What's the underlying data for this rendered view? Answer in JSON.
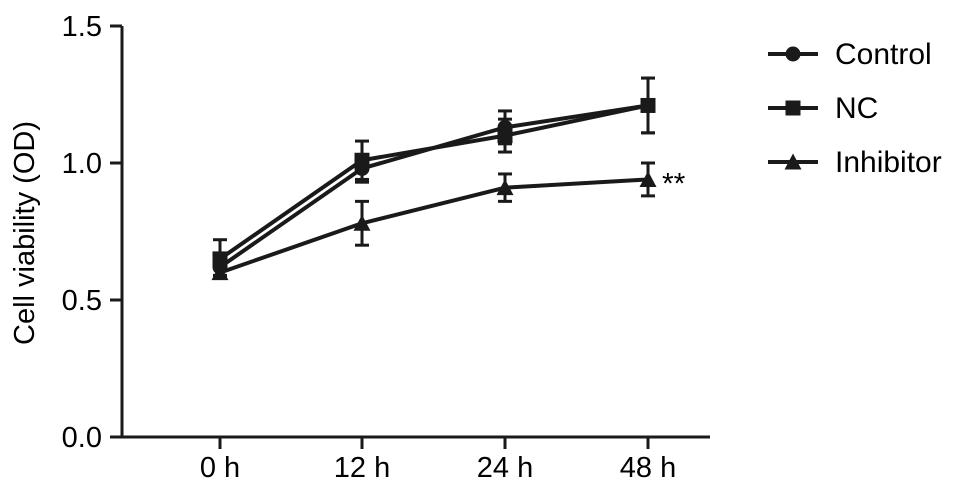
{
  "chart_data": {
    "type": "line",
    "title": "",
    "xlabel": "",
    "ylabel": "Cell viability (OD)",
    "categories": [
      "0 h",
      "12 h",
      "24 h",
      "48 h"
    ],
    "ylim": [
      0,
      1.5
    ],
    "yticks": [
      "0.0",
      "0.5",
      "1.0",
      "1.5"
    ],
    "grid": false,
    "legend_position": "right",
    "series": [
      {
        "name": "Control",
        "marker": "circle",
        "values": [
          0.62,
          0.98,
          1.13,
          1.21
        ],
        "errors": [
          0.03,
          0.05,
          0.06,
          0.1
        ]
      },
      {
        "name": "NC",
        "marker": "square",
        "values": [
          0.65,
          1.01,
          1.1,
          1.21
        ],
        "errors": [
          0.07,
          0.07,
          0.06,
          0.1
        ]
      },
      {
        "name": "Inhibitor",
        "marker": "triangle",
        "values": [
          0.6,
          0.78,
          0.91,
          0.94
        ],
        "errors": [
          0.02,
          0.08,
          0.05,
          0.06
        ]
      }
    ],
    "annotations": [
      {
        "text": "**",
        "category": "48 h",
        "series": "Inhibitor"
      }
    ],
    "colors": {
      "line": "#1a1a1a",
      "axis": "#1a1a1a"
    }
  }
}
